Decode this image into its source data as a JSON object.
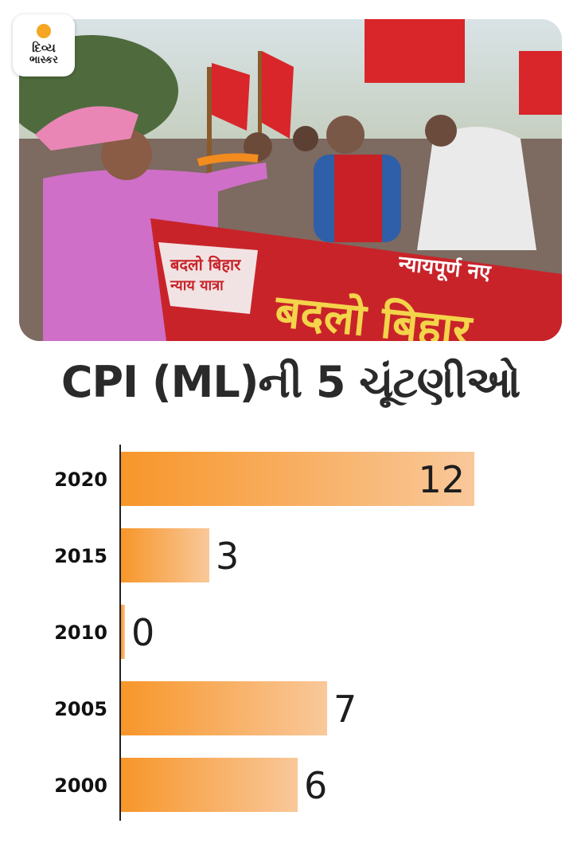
{
  "brand": {
    "logo_line1": "દિવ્ય",
    "logo_line2": "ભાસ્કર"
  },
  "photo": {
    "banner_main": "बदलो बिहार",
    "banner_sub": "न्यायपूर्ण नए",
    "banner_badge_line1": "बदलो बिहार",
    "banner_badge_line2": "न्याय यात्रा"
  },
  "colors": {
    "bar_start": "#f7962a",
    "bar_end": "#f9c89a",
    "axis": "#222222"
  },
  "chart_data": {
    "type": "bar",
    "orientation": "horizontal",
    "title": "CPI (ML)ની 5 ચૂંટણીઓ",
    "categories": [
      "2020",
      "2015",
      "2010",
      "2005",
      "2000"
    ],
    "values": [
      12,
      3,
      0,
      7,
      6
    ],
    "xlim": [
      0,
      12
    ],
    "grid": false
  }
}
